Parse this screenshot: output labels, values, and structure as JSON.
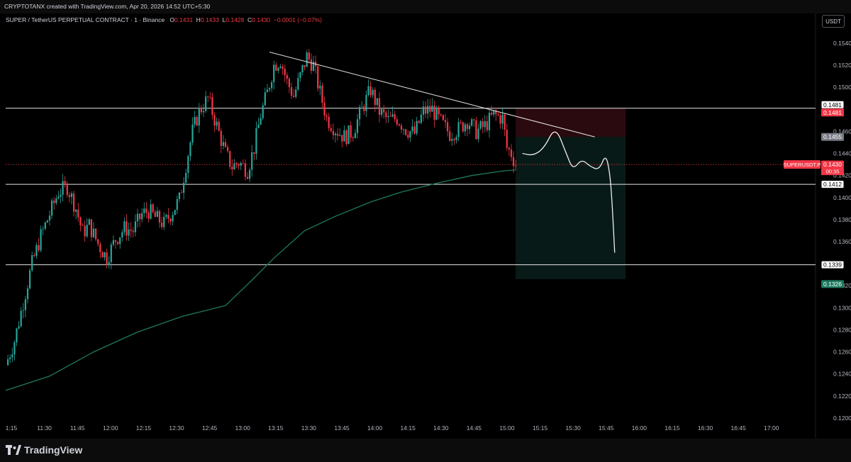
{
  "credit": "CRYPTOTANX created with TradingView.com, Apr 20, 2026 14:52 UTC+5:30",
  "legend": {
    "symbol": "SUPER / TetherUS PERPETUAL CONTRACT · 1 · Binance",
    "o_label": "O",
    "o": "0.1431",
    "h_label": "H",
    "h": "0.1433",
    "l_label": "L",
    "l": "0.1428",
    "c_label": "C",
    "c": "0.1430",
    "change": "−0.0001 (−0.07%)"
  },
  "currency": "USDT",
  "brand": "TradingView",
  "colors": {
    "up": "#26a69a",
    "down": "#f23645",
    "ma": "#1e7a5f",
    "background": "#000000",
    "text": "#d1d4dc",
    "risk_zone": "#2a0a0e",
    "reward_zone": "#081a17"
  },
  "chart_data": {
    "type": "candlestick",
    "title": "SUPER / TetherUS PERPETUAL CONTRACT · 1 · Binance",
    "interval": "1",
    "exchange": "Binance",
    "x_ticks": [
      "1:15",
      "11:30",
      "11:45",
      "12:00",
      "12:15",
      "12:30",
      "12:45",
      "13:00",
      "13:15",
      "13:30",
      "13:45",
      "14:00",
      "14:15",
      "14:30",
      "14:45",
      "15:00",
      "15:15",
      "15:30",
      "15:45",
      "16:00",
      "16:15",
      "16:30",
      "16:45",
      "17:00"
    ],
    "y_ticks": [
      "0.1540",
      "0.1520",
      "0.1500",
      "0.1460",
      "0.1440",
      "0.1420",
      "0.1400",
      "0.1380",
      "0.1360",
      "0.1320",
      "0.1300",
      "0.1280",
      "0.1260",
      "0.1240",
      "0.1220",
      "0.1200"
    ],
    "y_range": [
      0.1195,
      0.1555
    ],
    "x_range_minutes": [
      0,
      232
    ],
    "grid": false,
    "price_path": [
      [
        0,
        0.1248
      ],
      [
        4,
        0.127
      ],
      [
        8,
        0.1305
      ],
      [
        12,
        0.134
      ],
      [
        16,
        0.1365
      ],
      [
        20,
        0.1385
      ],
      [
        24,
        0.1405
      ],
      [
        28,
        0.141
      ],
      [
        32,
        0.139
      ],
      [
        35,
        0.1368
      ],
      [
        38,
        0.1375
      ],
      [
        42,
        0.1358
      ],
      [
        46,
        0.1345
      ],
      [
        50,
        0.1362
      ],
      [
        54,
        0.1372
      ],
      [
        58,
        0.137
      ],
      [
        62,
        0.1385
      ],
      [
        65,
        0.1388
      ],
      [
        68,
        0.1382
      ],
      [
        72,
        0.1376
      ],
      [
        75,
        0.1385
      ],
      [
        79,
        0.1398
      ],
      [
        82,
        0.143
      ],
      [
        85,
        0.146
      ],
      [
        88,
        0.1478
      ],
      [
        92,
        0.149
      ],
      [
        96,
        0.1465
      ],
      [
        100,
        0.144
      ],
      [
        103,
        0.1428
      ],
      [
        106,
        0.1432
      ],
      [
        110,
        0.1425
      ],
      [
        113,
        0.1445
      ],
      [
        116,
        0.1475
      ],
      [
        119,
        0.1495
      ],
      [
        122,
        0.152
      ],
      [
        125,
        0.1525
      ],
      [
        128,
        0.1505
      ],
      [
        131,
        0.1492
      ],
      [
        134,
        0.151
      ],
      [
        137,
        0.1528
      ],
      [
        140,
        0.152
      ],
      [
        143,
        0.1495
      ],
      [
        146,
        0.1472
      ],
      [
        150,
        0.1462
      ],
      [
        154,
        0.1455
      ],
      [
        158,
        0.146
      ],
      [
        162,
        0.148
      ],
      [
        166,
        0.1498
      ],
      [
        170,
        0.1478
      ],
      [
        174,
        0.147
      ],
      [
        178,
        0.1472
      ],
      [
        182,
        0.1462
      ],
      [
        186,
        0.1458
      ],
      [
        190,
        0.1478
      ],
      [
        194,
        0.148
      ],
      [
        198,
        0.1468
      ],
      [
        202,
        0.1458
      ],
      [
        206,
        0.1462
      ],
      [
        210,
        0.147
      ],
      [
        214,
        0.146
      ],
      [
        218,
        0.1465
      ],
      [
        222,
        0.1475
      ],
      [
        226,
        0.1472
      ],
      [
        228,
        0.1445
      ],
      [
        230,
        0.144
      ],
      [
        232,
        0.143
      ]
    ],
    "ma_path": [
      [
        0,
        0.1225
      ],
      [
        20,
        0.1238
      ],
      [
        40,
        0.126
      ],
      [
        60,
        0.1278
      ],
      [
        80,
        0.1292
      ],
      [
        100,
        0.1302
      ],
      [
        112,
        0.1325
      ],
      [
        122,
        0.1345
      ],
      [
        136,
        0.137
      ],
      [
        150,
        0.1383
      ],
      [
        166,
        0.1396
      ],
      [
        180,
        0.1405
      ],
      [
        196,
        0.1413
      ],
      [
        212,
        0.142
      ],
      [
        226,
        0.1424
      ],
      [
        232,
        0.1425
      ]
    ],
    "horizontal_levels": [
      0.1481,
      0.1412,
      0.1339
    ],
    "trendline": [
      [
        120,
        0.1532
      ],
      [
        268,
        0.1455
      ]
    ],
    "risk_zone": {
      "from_minute": 232,
      "to_minute": 282,
      "top": 0.1481,
      "bottom": 0.1455
    },
    "reward_zone": {
      "from_minute": 232,
      "to_minute": 282,
      "top": 0.1455,
      "bottom": 0.1326
    },
    "projection_path": [
      [
        235,
        0.144
      ],
      [
        240,
        0.1438
      ],
      [
        245,
        0.1445
      ],
      [
        250,
        0.1465
      ],
      [
        255,
        0.144
      ],
      [
        258,
        0.1425
      ],
      [
        262,
        0.1435
      ],
      [
        266,
        0.1428
      ],
      [
        270,
        0.1425
      ],
      [
        273,
        0.144
      ],
      [
        275,
        0.142
      ],
      [
        276,
        0.139
      ],
      [
        277,
        0.135
      ]
    ],
    "price_labels": [
      {
        "value": "0.1481",
        "kind": "white"
      },
      {
        "value": "0.1481",
        "kind": "red"
      },
      {
        "value": "0.1455",
        "kind": "grey"
      },
      {
        "value": "0.1430",
        "kind": "red"
      },
      {
        "value": "0.1412",
        "kind": "white"
      },
      {
        "value": "0.1339",
        "kind": "white"
      },
      {
        "value": "0.1326",
        "kind": "green"
      }
    ],
    "last_price_tag": {
      "symbol": "SUPERUSDT.P",
      "price": "0.1430",
      "countdown": "00:35"
    }
  }
}
